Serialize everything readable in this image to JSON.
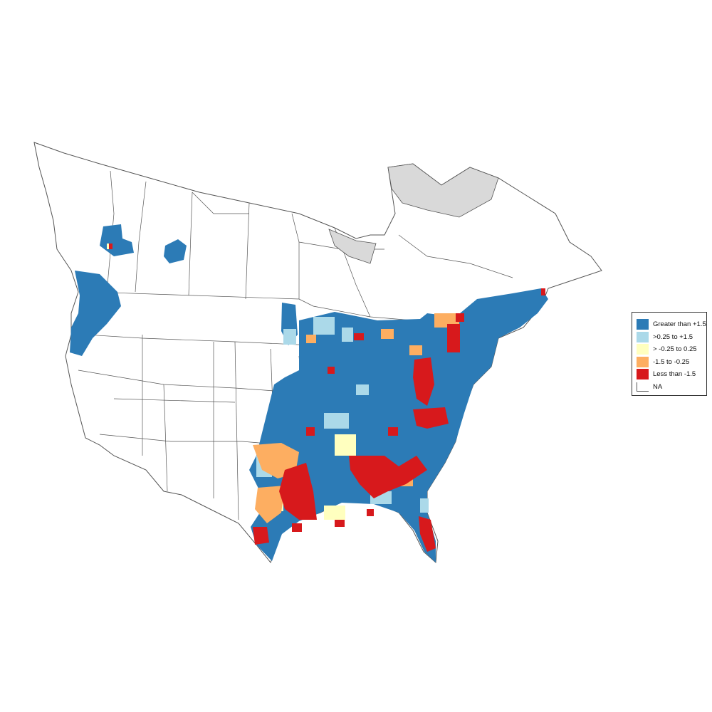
{
  "colors": {
    "land_stroke": "#555555",
    "land_fill": "#ffffff",
    "na_fill": "#d9d9d9",
    "blue_strong": "#2c7bb6",
    "blue_light": "#abd9e9",
    "yellow": "#ffffbf",
    "orange": "#fdae61",
    "red": "#d7191c"
  },
  "legend": {
    "items": [
      {
        "label": "Greater than +1.5",
        "color": "#2c7bb6"
      },
      {
        "label": ">0.25 to +1.5",
        "color": "#abd9e9"
      },
      {
        "label": "> -0.25 to 0.25",
        "color": "#ffffbf"
      },
      {
        "label": "-1.5 to -0.25",
        "color": "#fdae61"
      },
      {
        "label": "Less than -1.5",
        "color": "#d7191c"
      },
      {
        "label": "NA",
        "color": "none"
      }
    ]
  }
}
